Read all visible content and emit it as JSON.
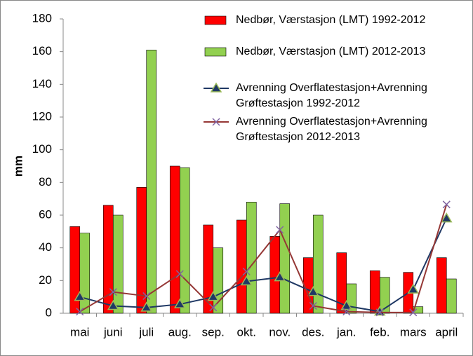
{
  "chart_data": {
    "type": "bar",
    "y_label": "mm",
    "categories": [
      "mai",
      "juni",
      "juli",
      "aug.",
      "sep.",
      "okt.",
      "nov.",
      "des.",
      "jan.",
      "feb.",
      "mars",
      "april"
    ],
    "series": [
      {
        "name": "Nedbør, Værstasjon (LMT) 1992-2012",
        "type": "bar",
        "color": "#ff0000",
        "values": [
          53,
          66,
          77,
          90,
          54,
          57,
          47,
          34,
          37,
          26,
          25,
          34
        ]
      },
      {
        "name": "Nedbør, Værstasjon (LMT) 2012-2013",
        "type": "bar",
        "color": "#92d050",
        "values": [
          49,
          60,
          161,
          89,
          40,
          68,
          67,
          60,
          18,
          22,
          4,
          21
        ]
      },
      {
        "name": "Avrenning Overflatestasjon+Avrenning Grøftestasjon 1992-2012",
        "type": "line",
        "marker": "triangle",
        "color": "#1f3864",
        "values": [
          10,
          4.5,
          3.5,
          5.5,
          10,
          19.5,
          22,
          13,
          4.5,
          1,
          14.5,
          58
        ]
      },
      {
        "name": "Avrenning Overflatestasjon+Avrenning Grøftestasjon 2012-2013",
        "type": "line",
        "marker": "x",
        "color": "#953735",
        "values": [
          1,
          13,
          10.5,
          24,
          3.5,
          25.5,
          51,
          4.5,
          1,
          0.5,
          0.5,
          66.5
        ]
      }
    ],
    "ylim": [
      0,
      180
    ],
    "yticks": [
      0,
      20,
      40,
      60,
      80,
      100,
      120,
      140,
      160,
      180
    ],
    "grid": false
  }
}
